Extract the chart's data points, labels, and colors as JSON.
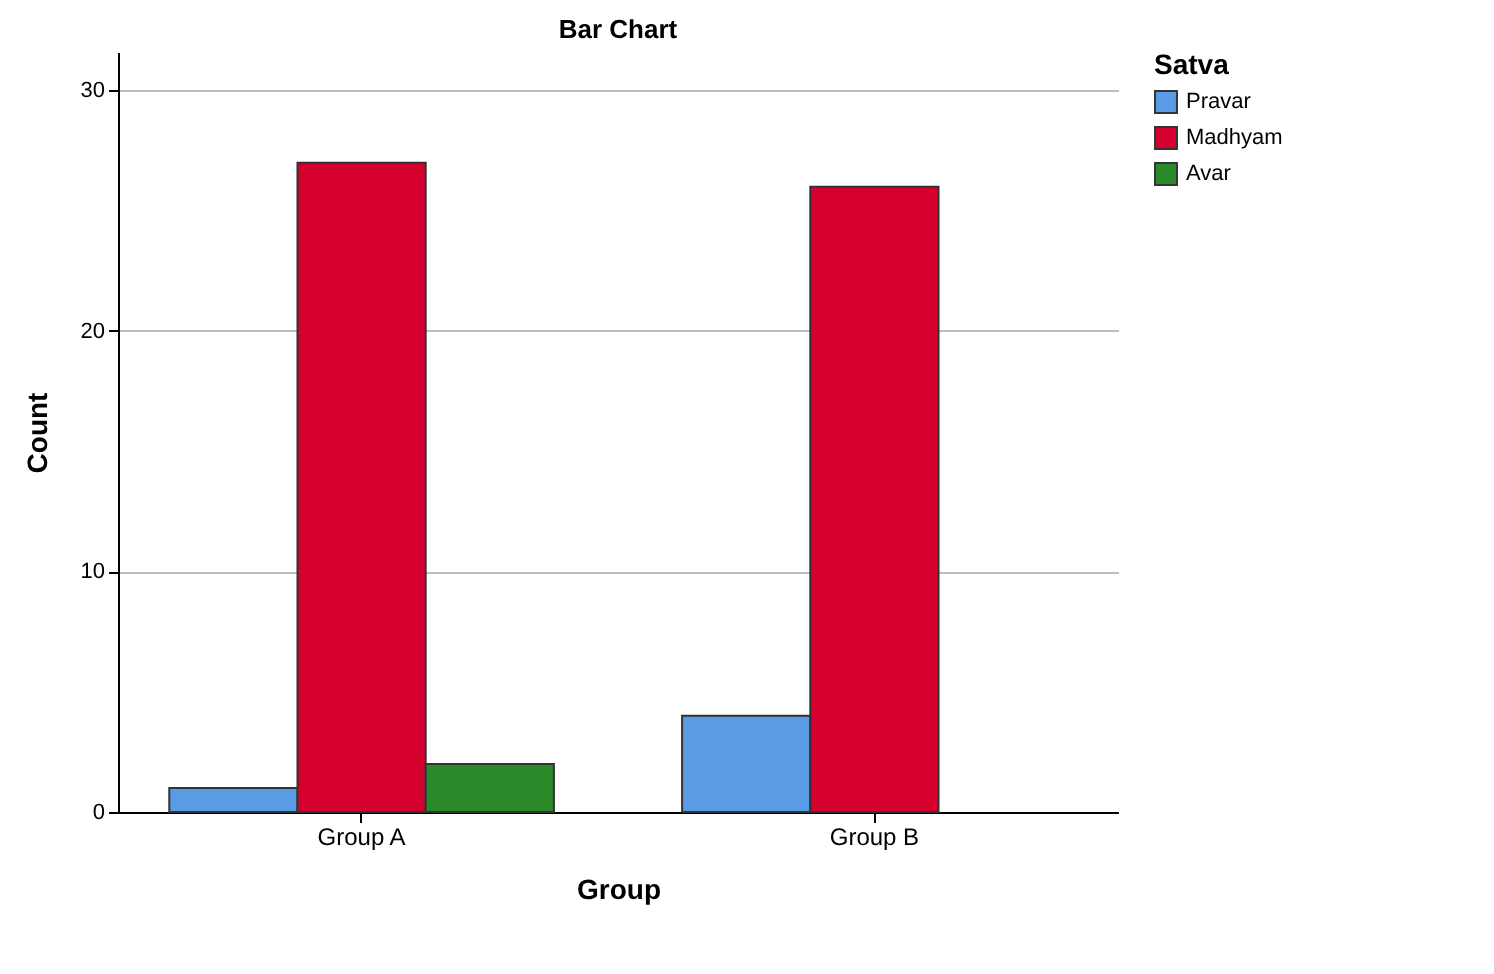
{
  "chart_data": {
    "type": "bar",
    "title": "Bar Chart",
    "xlabel": "Group",
    "ylabel": "Count",
    "legend_title": "Satva",
    "categories": [
      "Group A",
      "Group B"
    ],
    "series": [
      {
        "name": "Pravar",
        "color": "#5a9be6",
        "values": [
          1,
          4
        ]
      },
      {
        "name": "Madhyam",
        "color": "#d6002f",
        "values": [
          27,
          26
        ]
      },
      {
        "name": "Avar",
        "color": "#2a8a2a",
        "values": [
          2,
          null
        ]
      }
    ],
    "ylim": [
      0,
      31.6
    ],
    "yticks": [
      0,
      10,
      20,
      30
    ],
    "grid": "y",
    "legend": "top right"
  }
}
